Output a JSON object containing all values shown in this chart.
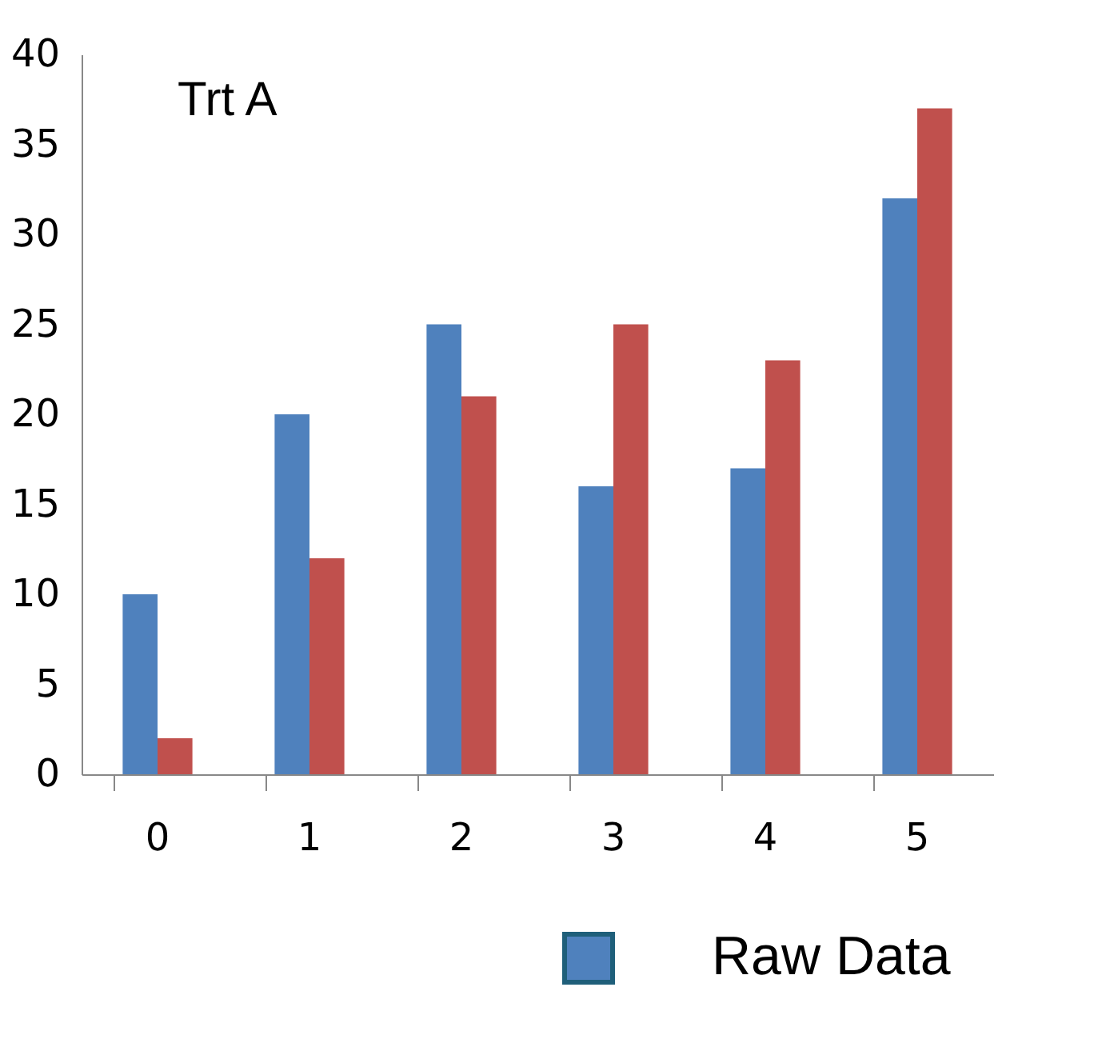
{
  "chart_data": {
    "type": "bar",
    "title": "Trt A",
    "categories": [
      "0",
      "1",
      "2",
      "3",
      "4",
      "5"
    ],
    "series": [
      {
        "name": "Raw Data",
        "color": "#4f81bd",
        "values": [
          10,
          20,
          25,
          16,
          17,
          32
        ]
      },
      {
        "color": "#c0504d",
        "values": [
          2,
          12,
          21,
          25,
          23,
          37
        ]
      }
    ],
    "ylim": [
      0,
      40
    ],
    "yticks": [
      0,
      5,
      10,
      15,
      20,
      25,
      30,
      35,
      40
    ],
    "legend": "bottom"
  }
}
